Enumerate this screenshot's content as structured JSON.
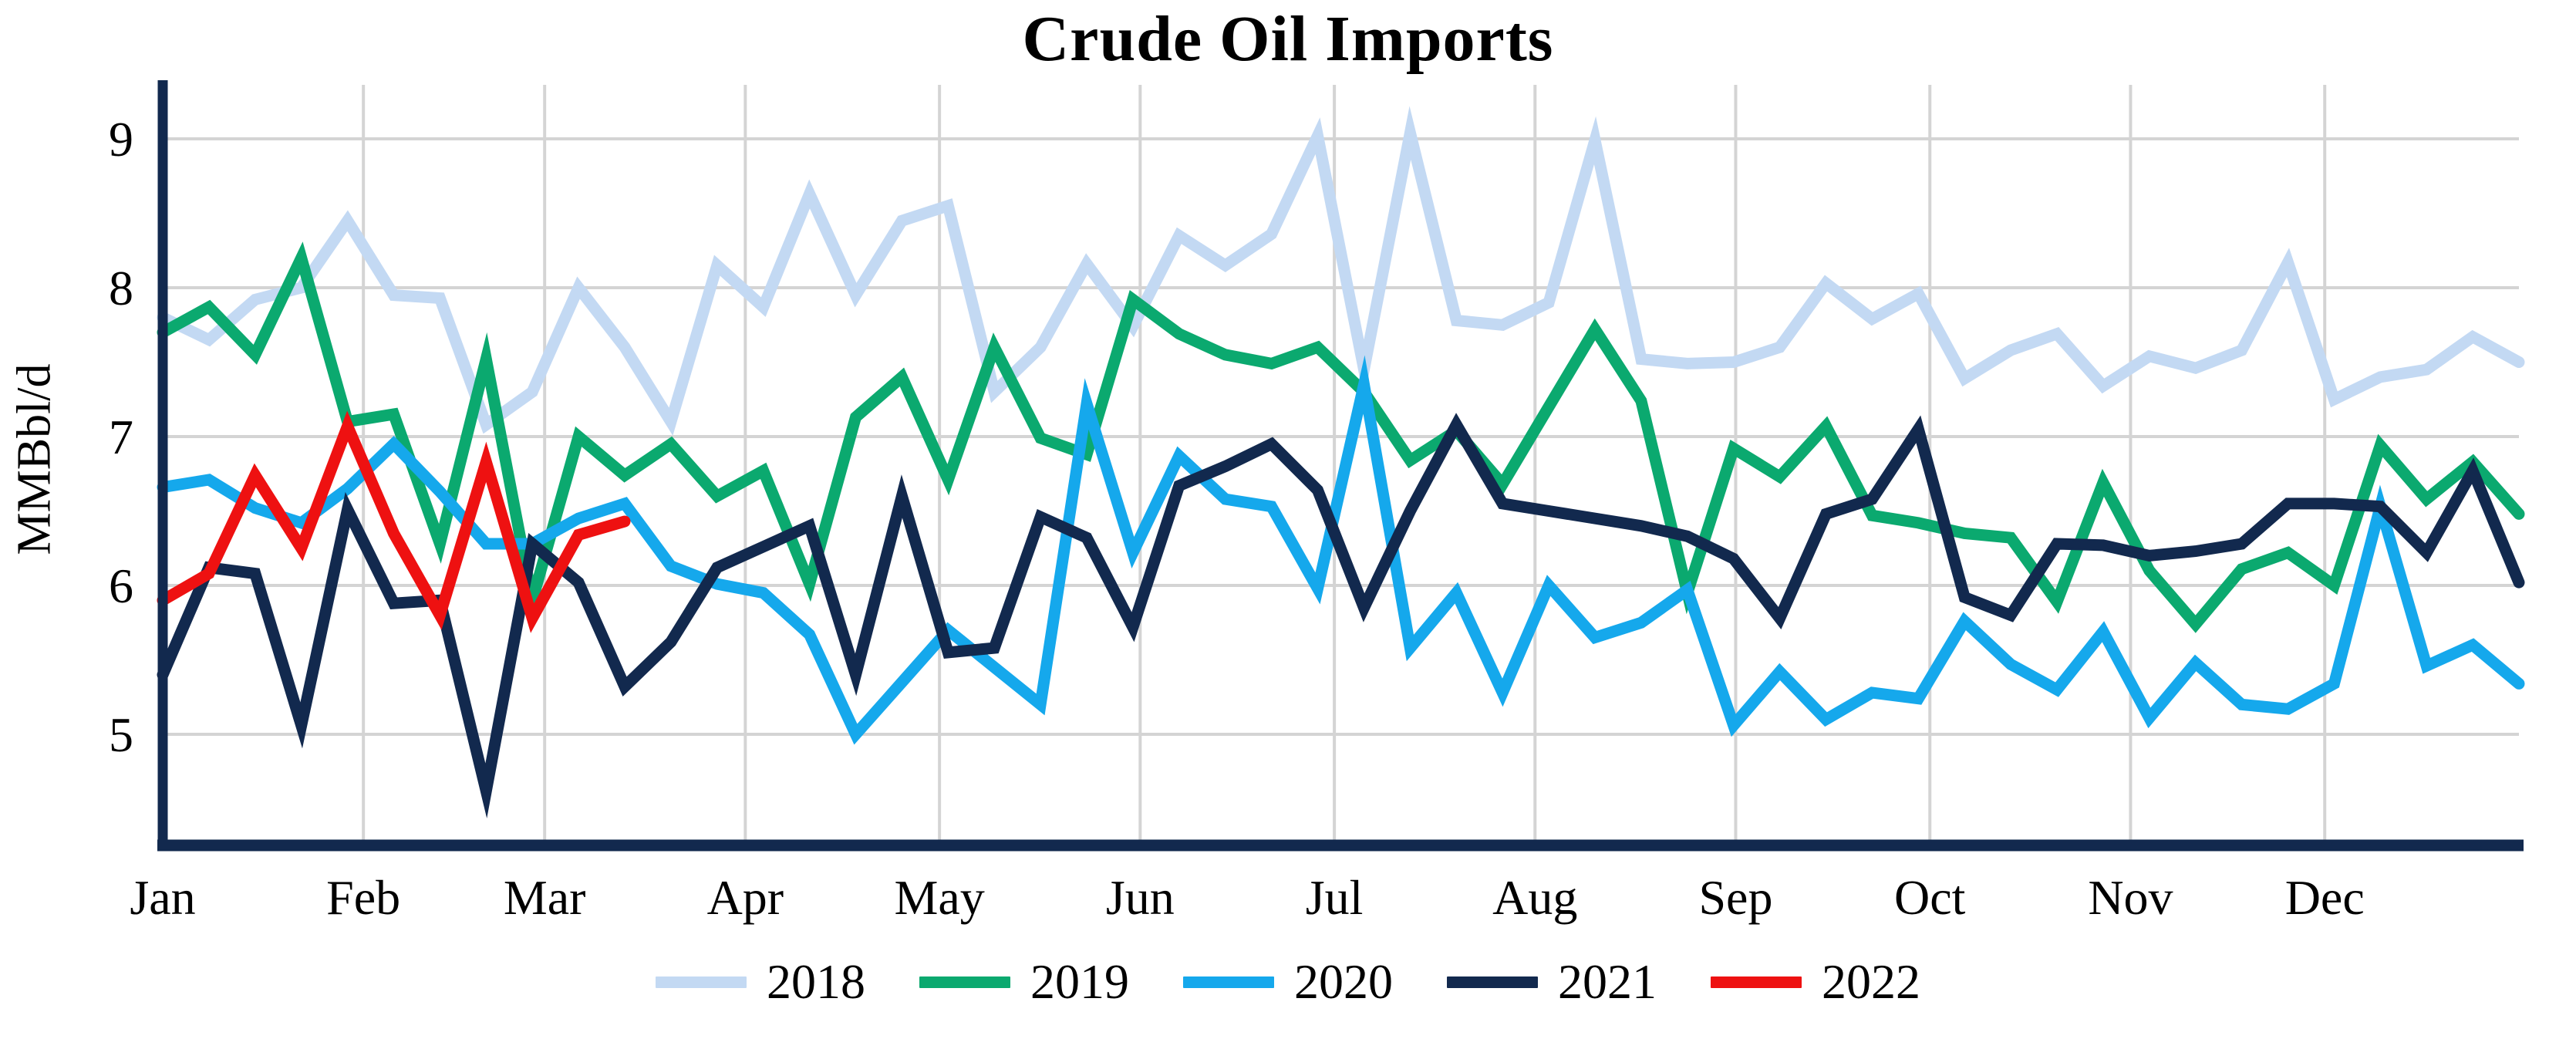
{
  "title": "Crude Oil Imports",
  "y_axis": {
    "label": "MMBbl/d",
    "tick_labels": [
      "9",
      "8",
      "7",
      "6",
      "5"
    ]
  },
  "x_axis": {
    "month_labels": [
      "Jan",
      "Feb",
      "Mar",
      "Apr",
      "May",
      "Jun",
      "Jul",
      "Aug",
      "Sep",
      "Oct",
      "Nov",
      "Dec"
    ]
  },
  "legend": {
    "entries": [
      "2018",
      "2019",
      "2020",
      "2021",
      "2022"
    ]
  },
  "colors": {
    "grid": "#D4D4D4",
    "axis": "#12294E",
    "background": "#FFFFFF",
    "title_text": "#000000"
  },
  "chart_data": {
    "type": "line",
    "title": "Crude Oil Imports",
    "xlabel": "",
    "ylabel": "MMBbl/d",
    "x_unit": "week of year (weekly data, 52 weeks)",
    "ylim": [
      4.3,
      9.4
    ],
    "yticks": [
      9,
      8,
      7,
      6,
      5
    ],
    "grid": "both",
    "legend_position": "bottom",
    "month_start_days": [
      0,
      31,
      59,
      90,
      120,
      151,
      181,
      212,
      243,
      273,
      304,
      334
    ],
    "days_per_year": 364,
    "series": [
      {
        "name": "2018",
        "color": "#C3D9F3",
        "values": [
          7.8,
          7.65,
          7.92,
          8.0,
          8.45,
          7.95,
          7.93,
          7.08,
          7.3,
          8.0,
          7.6,
          7.1,
          8.15,
          7.87,
          8.63,
          7.95,
          8.45,
          8.55,
          7.3,
          7.6,
          8.16,
          7.74,
          8.35,
          8.15,
          8.36,
          9.02,
          7.45,
          9.04,
          7.78,
          7.75,
          7.9,
          8.99,
          7.52,
          7.49,
          7.5,
          7.6,
          8.03,
          7.79,
          7.96,
          7.39,
          7.58,
          7.69,
          7.34,
          7.54,
          7.46,
          7.58,
          8.17,
          7.25,
          7.4,
          7.45,
          7.67,
          7.5
        ]
      },
      {
        "name": "2019",
        "color": "#0BA96F",
        "values": [
          7.7,
          7.87,
          7.55,
          8.2,
          7.1,
          7.15,
          6.28,
          7.52,
          5.9,
          7.0,
          6.74,
          6.95,
          6.6,
          6.77,
          6.01,
          7.13,
          7.4,
          6.71,
          7.6,
          6.99,
          6.88,
          7.92,
          7.69,
          7.55,
          7.49,
          7.6,
          7.3,
          6.84,
          7.04,
          6.68,
          7.2,
          7.72,
          7.24,
          5.95,
          6.92,
          6.73,
          7.07,
          6.47,
          6.42,
          6.35,
          6.32,
          5.89,
          6.69,
          6.1,
          5.74,
          6.11,
          6.22,
          6.0,
          6.94,
          6.58,
          6.83,
          6.48
        ]
      },
      {
        "name": "2020",
        "color": "#15A8EC",
        "values": [
          6.66,
          6.71,
          6.52,
          6.42,
          6.65,
          6.95,
          6.63,
          6.28,
          6.28,
          6.45,
          6.55,
          6.13,
          6.01,
          5.95,
          5.67,
          5.0,
          5.35,
          5.7,
          5.45,
          5.2,
          7.22,
          6.22,
          6.87,
          6.58,
          6.53,
          5.98,
          7.35,
          5.58,
          5.95,
          5.28,
          6.0,
          5.65,
          5.75,
          5.97,
          5.06,
          5.42,
          5.1,
          5.28,
          5.24,
          5.76,
          5.47,
          5.3,
          5.69,
          5.11,
          5.48,
          5.2,
          5.17,
          5.34,
          6.53,
          5.46,
          5.6,
          5.34
        ]
      },
      {
        "name": "2021",
        "color": "#12294E",
        "values": [
          5.4,
          6.12,
          6.08,
          5.06,
          6.51,
          5.88,
          5.9,
          4.62,
          6.28,
          6.02,
          5.32,
          5.62,
          6.12,
          6.26,
          6.4,
          5.4,
          6.6,
          5.55,
          5.58,
          6.46,
          6.32,
          5.72,
          6.67,
          6.8,
          6.95,
          6.64,
          5.85,
          6.5,
          7.08,
          6.55,
          6.5,
          6.45,
          6.4,
          6.33,
          6.18,
          5.78,
          6.48,
          6.58,
          7.05,
          5.92,
          5.8,
          6.28,
          6.27,
          6.2,
          6.23,
          6.28,
          6.55,
          6.55,
          6.53,
          6.22,
          6.77,
          6.02
        ]
      },
      {
        "name": "2022",
        "color": "#EE1111",
        "values": [
          5.9,
          6.08,
          6.74,
          6.25,
          7.07,
          6.35,
          5.8,
          6.83,
          5.78,
          6.34,
          6.43
        ]
      }
    ]
  }
}
